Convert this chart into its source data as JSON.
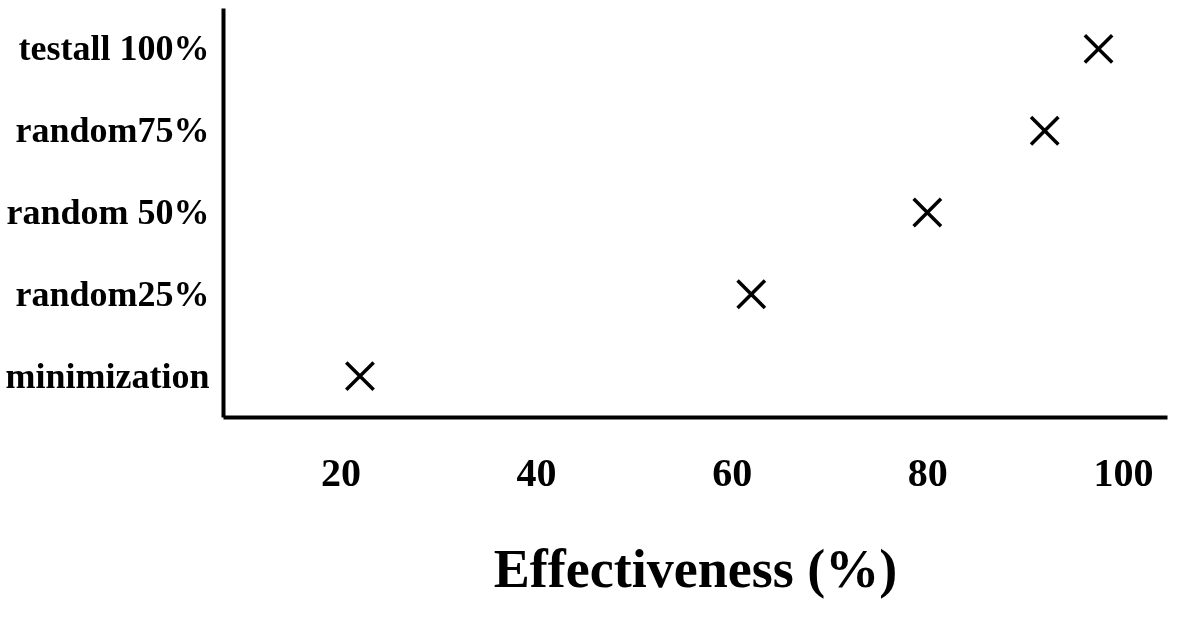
{
  "chart_data": {
    "type": "scatter",
    "orientation": "horizontal",
    "xlabel": "Effectiveness (%)",
    "categories": [
      "testall 100%",
      "random75%",
      "random 50%",
      "random25%",
      "minimization"
    ],
    "values": [
      97.5,
      92,
      80,
      62,
      22
    ],
    "color": "#000000",
    "marker": "cross",
    "xlim": [
      8,
      104.5
    ],
    "xticks": [
      20,
      40,
      60,
      80,
      100
    ],
    "grid": false
  }
}
